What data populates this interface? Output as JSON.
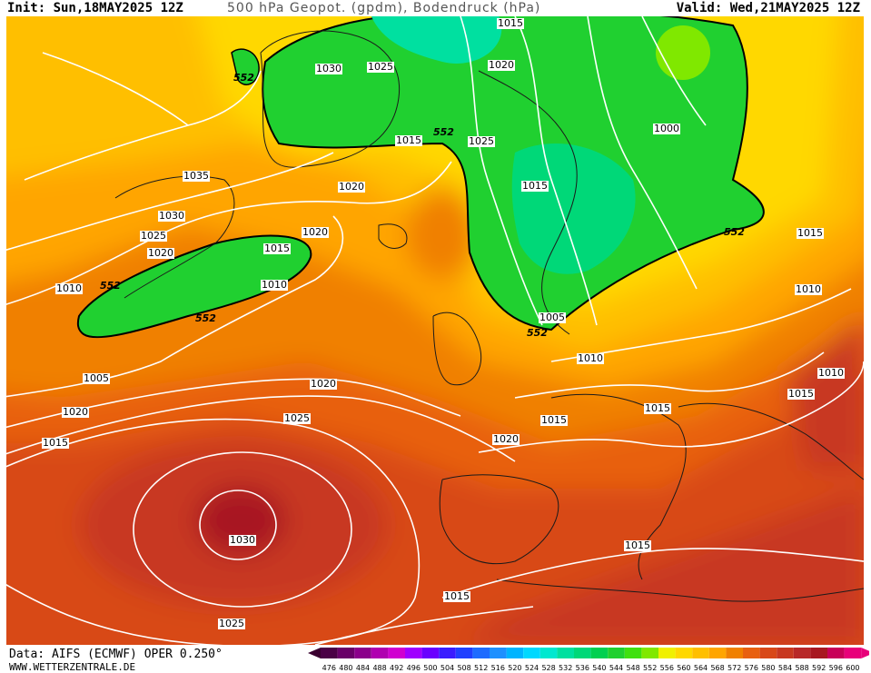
{
  "header": {
    "init": "Init: Sun,18MAY2025 12Z",
    "title": "500 hPa Geopot. (gpdm), Bodendruck (hPa)",
    "valid": "Valid: Wed,21MAY2025 12Z"
  },
  "footer": {
    "data_source": "Data: AIFS (ECMWF) OPER 0.250°",
    "website": "WWW.WETTERZENTRALE.DE"
  },
  "colorbar": {
    "ticks": [
      "476",
      "480",
      "484",
      "488",
      "492",
      "496",
      "500",
      "504",
      "508",
      "512",
      "516",
      "520",
      "524",
      "528",
      "532",
      "536",
      "540",
      "544",
      "548",
      "552",
      "556",
      "560",
      "564",
      "568",
      "572",
      "576",
      "580",
      "584",
      "588",
      "592",
      "596",
      "600"
    ],
    "colors": [
      "#4b0046",
      "#6a0069",
      "#8b008b",
      "#b000b0",
      "#d000d0",
      "#a000ff",
      "#6a00ff",
      "#3a1cff",
      "#2040ff",
      "#1e6bff",
      "#1e90ff",
      "#00b4ff",
      "#00d8ff",
      "#00e8d0",
      "#00e0a0",
      "#00d878",
      "#00d050",
      "#20d030",
      "#40e010",
      "#80e800",
      "#f0f000",
      "#ffd800",
      "#ffbf00",
      "#ffa500",
      "#f08000",
      "#e86010",
      "#d84818",
      "#c83820",
      "#b82828",
      "#a81820",
      "#c80058",
      "#e8007a"
    ]
  },
  "map_labels": {
    "isobars": [
      {
        "text": "1015"
      },
      {
        "text": "1030"
      },
      {
        "text": "1025"
      },
      {
        "text": "1020"
      },
      {
        "text": "1000"
      },
      {
        "text": "1025"
      },
      {
        "text": "1015"
      },
      {
        "text": "1035"
      },
      {
        "text": "1020"
      },
      {
        "text": "1015"
      },
      {
        "text": "1030"
      },
      {
        "text": "1025"
      },
      {
        "text": "1020"
      },
      {
        "text": "1020"
      },
      {
        "text": "1015"
      },
      {
        "text": "1010"
      },
      {
        "text": "1010"
      },
      {
        "text": "1005"
      },
      {
        "text": "1015"
      },
      {
        "text": "1010"
      },
      {
        "text": "1020"
      },
      {
        "text": "1005"
      },
      {
        "text": "1020"
      },
      {
        "text": "1010"
      },
      {
        "text": "1015"
      },
      {
        "text": "1010"
      },
      {
        "text": "1015"
      },
      {
        "text": "1025"
      },
      {
        "text": "1015"
      },
      {
        "text": "1015"
      },
      {
        "text": "1020"
      },
      {
        "text": "1030"
      },
      {
        "text": "1015"
      },
      {
        "text": "1015"
      },
      {
        "text": "1025"
      }
    ],
    "geopotential": [
      {
        "text": "552"
      },
      {
        "text": "552"
      },
      {
        "text": "552"
      },
      {
        "text": "552"
      },
      {
        "text": "552"
      },
      {
        "text": "552"
      }
    ]
  }
}
